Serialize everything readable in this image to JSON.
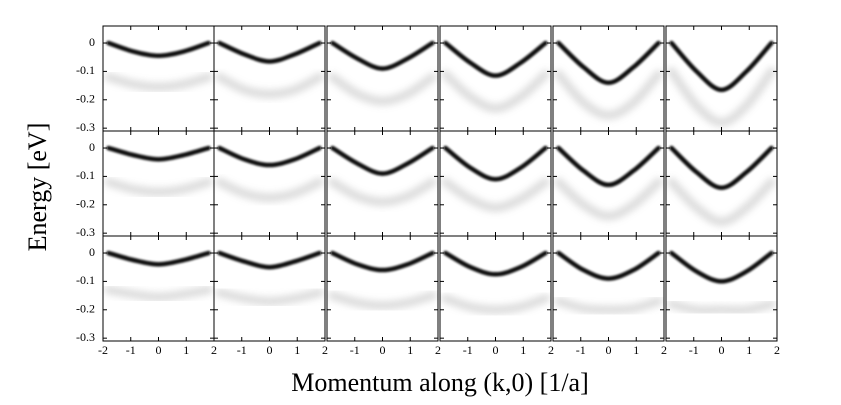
{
  "chart_data": {
    "type": "line",
    "xlabel": "Momentum along (k,0) [1/a]",
    "ylabel": "Energy [eV]",
    "xlim": [
      -2,
      2
    ],
    "ylim": [
      -0.31,
      0.06
    ],
    "xticks": [
      -2,
      -1,
      0,
      1,
      2
    ],
    "yticks": [
      0,
      -0.1,
      -0.2,
      -0.3
    ],
    "x": [
      -1.8,
      -0.9,
      0,
      0.9,
      1.8
    ],
    "panels": [
      {
        "series": [
          {
            "color": "#000000",
            "values": [
              0.0,
              -0.03,
              -0.045,
              -0.03,
              0.0
            ]
          },
          {
            "color": "#a0a0a0",
            "values": [
              -0.12,
              -0.145,
              -0.155,
              -0.145,
              -0.12
            ]
          }
        ]
      },
      {
        "series": [
          {
            "color": "#000000",
            "values": [
              0.0,
              -0.04,
              -0.065,
              -0.04,
              0.0
            ]
          },
          {
            "color": "#a0a0a0",
            "values": [
              -0.12,
              -0.165,
              -0.18,
              -0.165,
              -0.12
            ]
          }
        ]
      },
      {
        "series": [
          {
            "color": "#000000",
            "values": [
              0.0,
              -0.055,
              -0.09,
              -0.055,
              0.0
            ]
          },
          {
            "color": "#a0a0a0",
            "values": [
              -0.12,
              -0.18,
              -0.205,
              -0.18,
              -0.12
            ]
          }
        ]
      },
      {
        "series": [
          {
            "color": "#000000",
            "values": [
              0.0,
              -0.07,
              -0.115,
              -0.07,
              0.0
            ]
          },
          {
            "color": "#a0a0a0",
            "values": [
              -0.11,
              -0.19,
              -0.23,
              -0.19,
              -0.11
            ]
          }
        ]
      },
      {
        "series": [
          {
            "color": "#000000",
            "values": [
              0.0,
              -0.085,
              -0.14,
              -0.085,
              0.0
            ]
          },
          {
            "color": "#a0a0a0",
            "values": [
              -0.11,
              -0.21,
              -0.255,
              -0.21,
              -0.11
            ]
          }
        ]
      },
      {
        "series": [
          {
            "color": "#000000",
            "values": [
              0.0,
              -0.1,
              -0.165,
              -0.1,
              0.0
            ]
          },
          {
            "color": "#a0a0a0",
            "values": [
              -0.1,
              -0.22,
              -0.28,
              -0.22,
              -0.1
            ]
          }
        ]
      },
      {
        "series": [
          {
            "color": "#000000",
            "values": [
              0.0,
              -0.025,
              -0.04,
              -0.025,
              0.0
            ]
          },
          {
            "color": "#a0a0a0",
            "values": [
              -0.12,
              -0.145,
              -0.155,
              -0.145,
              -0.12
            ]
          }
        ]
      },
      {
        "series": [
          {
            "color": "#000000",
            "values": [
              0.0,
              -0.04,
              -0.06,
              -0.04,
              0.0
            ]
          },
          {
            "color": "#a0a0a0",
            "values": [
              -0.12,
              -0.16,
              -0.175,
              -0.16,
              -0.12
            ]
          }
        ]
      },
      {
        "series": [
          {
            "color": "#000000",
            "values": [
              0.0,
              -0.055,
              -0.09,
              -0.055,
              0.0
            ]
          },
          {
            "color": "#a0a0a0",
            "values": [
              -0.12,
              -0.17,
              -0.19,
              -0.17,
              -0.12
            ]
          }
        ]
      },
      {
        "series": [
          {
            "color": "#000000",
            "values": [
              0.0,
              -0.07,
              -0.11,
              -0.07,
              0.0
            ]
          },
          {
            "color": "#a0a0a0",
            "values": [
              -0.12,
              -0.18,
              -0.21,
              -0.18,
              -0.12
            ]
          }
        ]
      },
      {
        "series": [
          {
            "color": "#000000",
            "values": [
              0.0,
              -0.08,
              -0.13,
              -0.08,
              0.0
            ]
          },
          {
            "color": "#a0a0a0",
            "values": [
              -0.12,
              -0.2,
              -0.24,
              -0.2,
              -0.12
            ]
          }
        ]
      },
      {
        "series": [
          {
            "color": "#000000",
            "values": [
              0.0,
              -0.085,
              -0.14,
              -0.085,
              0.0
            ]
          },
          {
            "color": "#a0a0a0",
            "values": [
              -0.12,
              -0.21,
              -0.26,
              -0.21,
              -0.12
            ]
          }
        ]
      },
      {
        "series": [
          {
            "color": "#000000",
            "values": [
              0.0,
              -0.025,
              -0.04,
              -0.025,
              0.0
            ]
          },
          {
            "color": "#a0a0a0",
            "values": [
              -0.13,
              -0.145,
              -0.155,
              -0.145,
              -0.13
            ]
          }
        ]
      },
      {
        "series": [
          {
            "color": "#000000",
            "values": [
              0.0,
              -0.03,
              -0.05,
              -0.03,
              0.0
            ]
          },
          {
            "color": "#a0a0a0",
            "values": [
              -0.14,
              -0.16,
              -0.17,
              -0.16,
              -0.14
            ]
          }
        ]
      },
      {
        "series": [
          {
            "color": "#000000",
            "values": [
              0.0,
              -0.04,
              -0.06,
              -0.04,
              0.0
            ]
          },
          {
            "color": "#a0a0a0",
            "values": [
              -0.15,
              -0.175,
              -0.185,
              -0.175,
              -0.15
            ]
          }
        ]
      },
      {
        "series": [
          {
            "color": "#000000",
            "values": [
              0.0,
              -0.05,
              -0.075,
              -0.05,
              0.0
            ]
          },
          {
            "color": "#a0a0a0",
            "values": [
              -0.16,
              -0.19,
              -0.2,
              -0.19,
              -0.16
            ]
          }
        ]
      },
      {
        "series": [
          {
            "color": "#000000",
            "values": [
              0.0,
              -0.06,
              -0.09,
              -0.06,
              0.0
            ]
          },
          {
            "color": "#a0a0a0",
            "values": [
              -0.17,
              -0.195,
              -0.2,
              -0.195,
              -0.17
            ]
          }
        ]
      },
      {
        "series": [
          {
            "color": "#000000",
            "values": [
              0.0,
              -0.065,
              -0.1,
              -0.065,
              0.0
            ]
          },
          {
            "color": "#a0a0a0",
            "values": [
              -0.18,
              -0.2,
              -0.2,
              -0.2,
              -0.18
            ]
          }
        ]
      }
    ]
  }
}
